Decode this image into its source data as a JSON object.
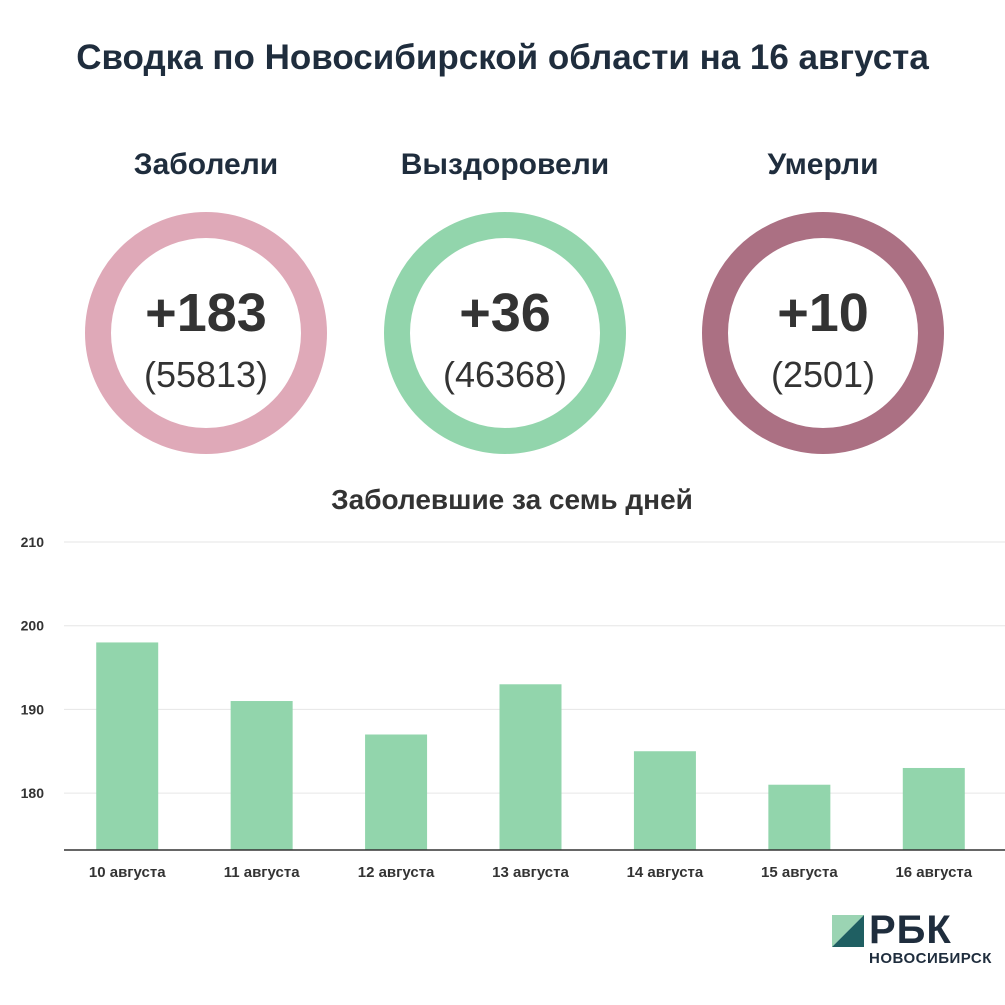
{
  "title": "Сводка по Новосибирской области на 16 августа",
  "stats": [
    {
      "label": "Заболели",
      "delta": "+183",
      "total": "(55813)",
      "color": "#dfa9b8"
    },
    {
      "label": "Выздоровели",
      "delta": "+36",
      "total": "(46368)",
      "color": "#92d5ac"
    },
    {
      "label": "Умерли",
      "delta": "+10",
      "total": "(2501)",
      "color": "#ab7083"
    }
  ],
  "chart_title": "Заболевшие за семь дней",
  "chart_data": {
    "type": "bar",
    "categories": [
      "10 августа",
      "11 августа",
      "12 августа",
      "13 августа",
      "14 августа",
      "15 августа",
      "16 августа"
    ],
    "values": [
      198,
      191,
      187,
      193,
      185,
      181,
      183
    ],
    "yticks": [
      180,
      190,
      200,
      210
    ],
    "ylim": [
      173.2,
      210
    ],
    "grid": true,
    "bar_color": "#92d5ac"
  },
  "logo": {
    "text": "РБК",
    "sub": "НОВОСИБИРСК"
  }
}
